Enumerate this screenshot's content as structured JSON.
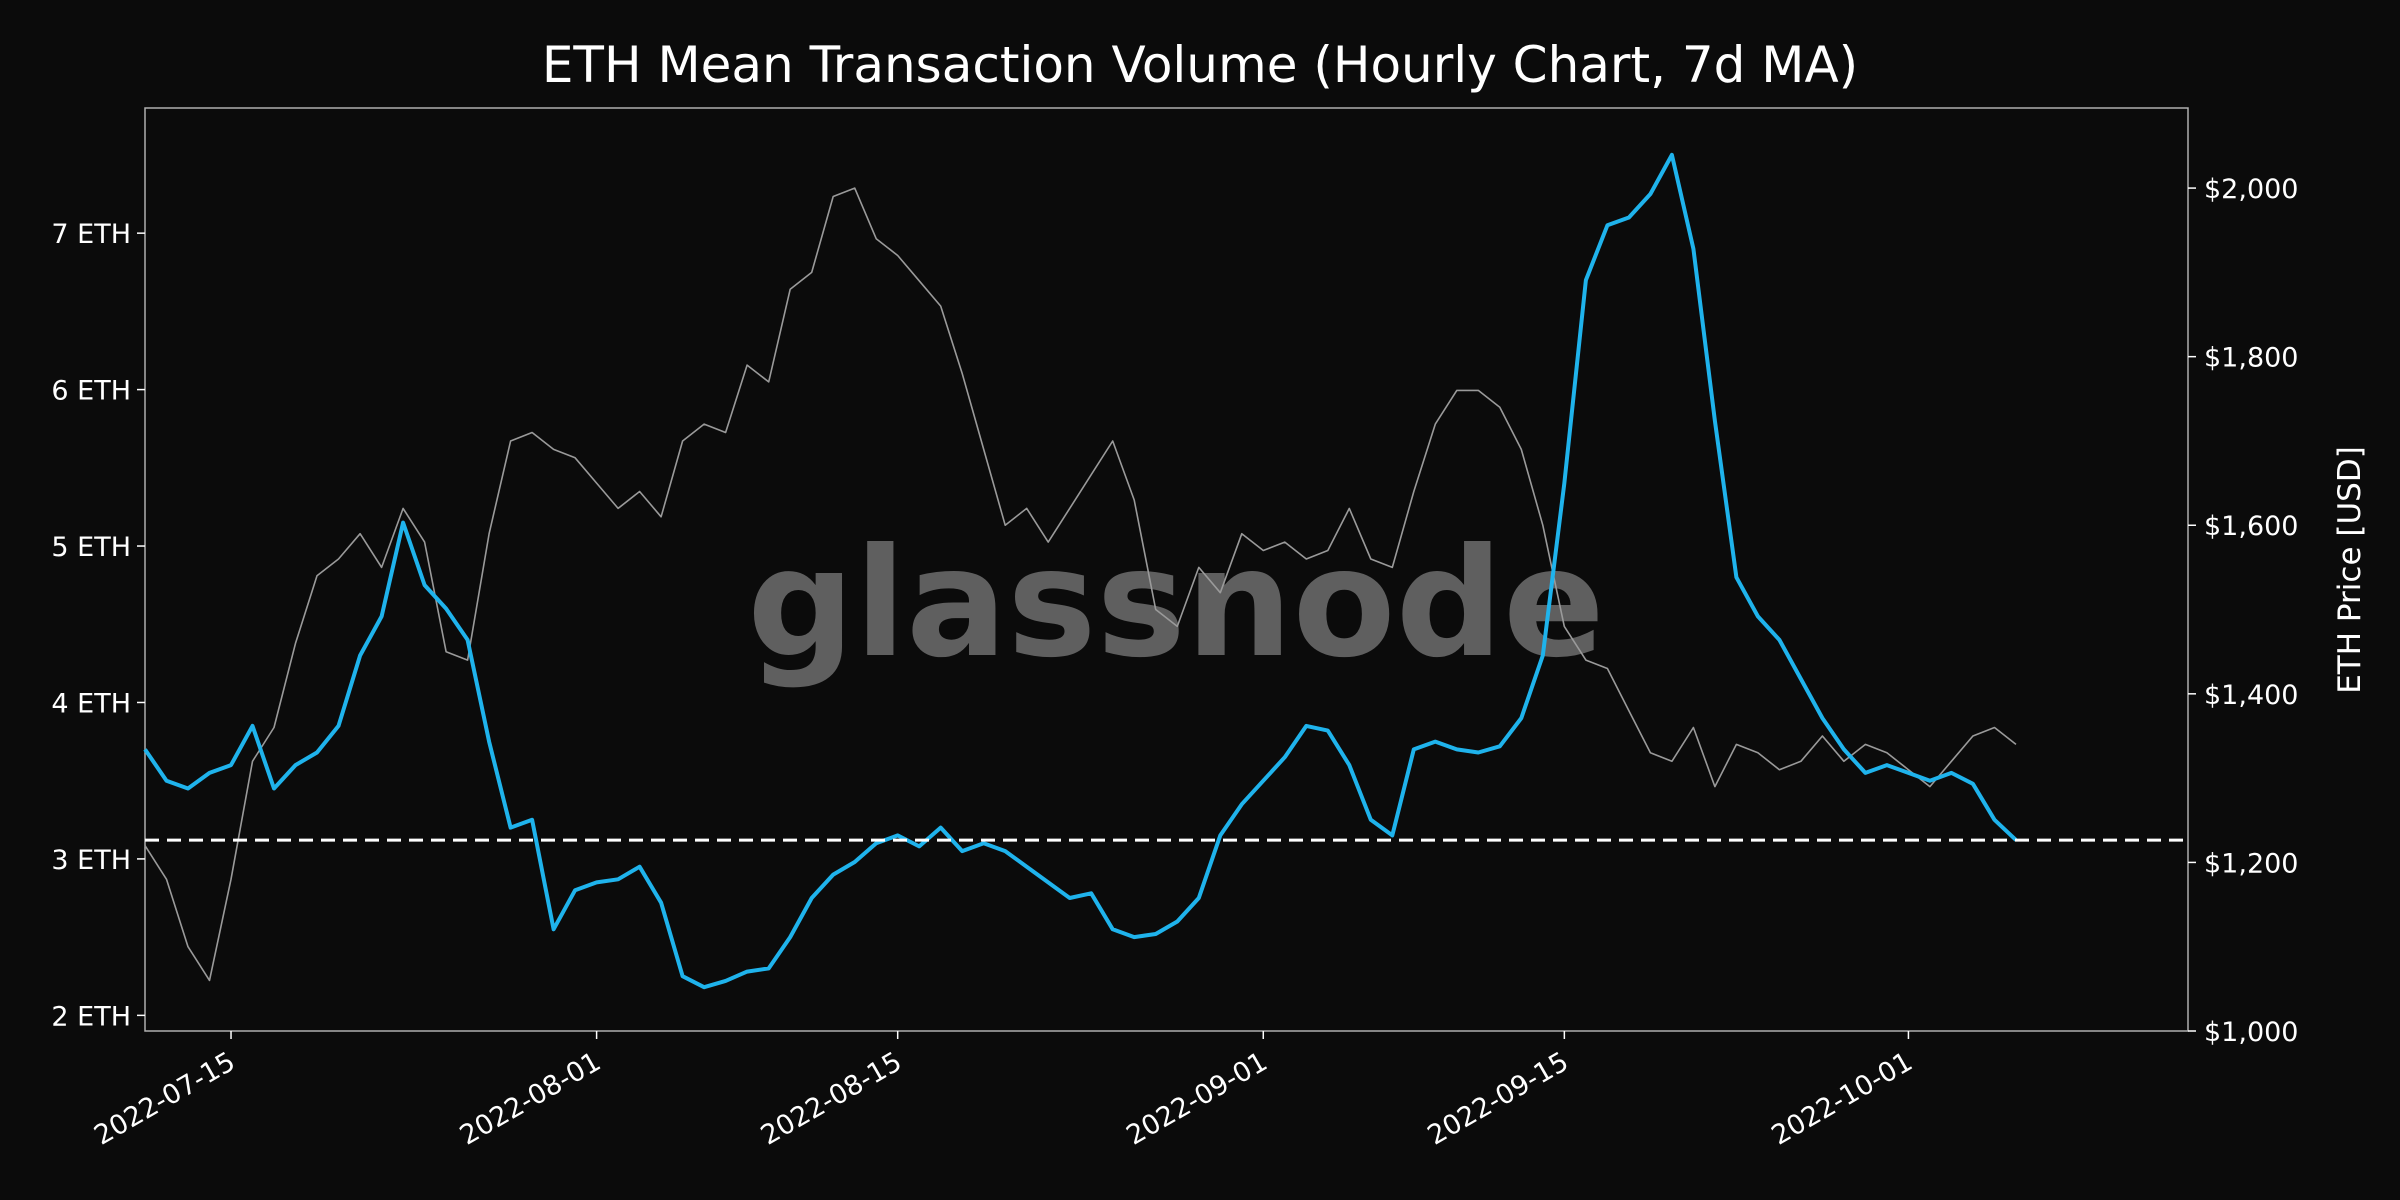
{
  "chart_data": {
    "type": "line",
    "title": "ETH Mean Transaction Volume (Hourly Chart, 7d MA)",
    "watermark": "glassnode",
    "xlabel": "",
    "ylabel_left": "",
    "ylabel_right": "ETH Price [USD]",
    "x_range": [
      "2022-07-11",
      "2022-10-14"
    ],
    "x_ticks": [
      "2022-07-15",
      "2022-08-01",
      "2022-08-15",
      "2022-09-01",
      "2022-09-15",
      "2022-10-01"
    ],
    "y_left": {
      "min": 1.9,
      "max": 7.8,
      "ticks": [
        2,
        3,
        4,
        5,
        6,
        7
      ],
      "tick_labels": [
        "2 ETH",
        "3 ETH",
        "4 ETH",
        "5 ETH",
        "6 ETH",
        "7 ETH"
      ]
    },
    "y_right": {
      "min": 1000,
      "max": 2095,
      "ticks": [
        1000,
        1200,
        1400,
        1600,
        1800,
        2000
      ],
      "tick_labels": [
        "$1,000",
        "$1,200",
        "$1,400",
        "$1,600",
        "$1,800",
        "$2,000"
      ]
    },
    "reference_line": {
      "axis": "left",
      "value": 3.12,
      "style": "dashed",
      "color": "#ffffff"
    },
    "series": [
      {
        "role": "mean_transaction_volume",
        "axis": "left",
        "color": "#1fb3ec",
        "x": [
          "2022-07-11",
          "2022-07-12",
          "2022-07-13",
          "2022-07-14",
          "2022-07-15",
          "2022-07-16",
          "2022-07-17",
          "2022-07-18",
          "2022-07-19",
          "2022-07-20",
          "2022-07-21",
          "2022-07-22",
          "2022-07-23",
          "2022-07-24",
          "2022-07-25",
          "2022-07-26",
          "2022-07-27",
          "2022-07-28",
          "2022-07-29",
          "2022-07-30",
          "2022-07-31",
          "2022-08-01",
          "2022-08-02",
          "2022-08-03",
          "2022-08-04",
          "2022-08-05",
          "2022-08-06",
          "2022-08-07",
          "2022-08-08",
          "2022-08-09",
          "2022-08-10",
          "2022-08-11",
          "2022-08-12",
          "2022-08-13",
          "2022-08-14",
          "2022-08-15",
          "2022-08-16",
          "2022-08-17",
          "2022-08-18",
          "2022-08-19",
          "2022-08-20",
          "2022-08-21",
          "2022-08-22",
          "2022-08-23",
          "2022-08-24",
          "2022-08-25",
          "2022-08-26",
          "2022-08-27",
          "2022-08-28",
          "2022-08-29",
          "2022-08-30",
          "2022-08-31",
          "2022-09-01",
          "2022-09-02",
          "2022-09-03",
          "2022-09-04",
          "2022-09-05",
          "2022-09-06",
          "2022-09-07",
          "2022-09-08",
          "2022-09-09",
          "2022-09-10",
          "2022-09-11",
          "2022-09-12",
          "2022-09-13",
          "2022-09-14",
          "2022-09-15",
          "2022-09-16",
          "2022-09-17",
          "2022-09-18",
          "2022-09-19",
          "2022-09-20",
          "2022-09-21",
          "2022-09-22",
          "2022-09-23",
          "2022-09-24",
          "2022-09-25",
          "2022-09-26",
          "2022-09-27",
          "2022-09-28",
          "2022-09-29",
          "2022-09-30",
          "2022-10-01",
          "2022-10-02",
          "2022-10-03",
          "2022-10-04",
          "2022-10-05",
          "2022-10-06"
        ],
        "values": [
          3.7,
          3.5,
          3.45,
          3.55,
          3.6,
          3.85,
          3.45,
          3.6,
          3.68,
          3.85,
          4.3,
          4.55,
          5.15,
          4.75,
          4.6,
          4.4,
          3.75,
          3.2,
          3.25,
          2.55,
          2.8,
          2.85,
          2.87,
          2.95,
          2.72,
          2.25,
          2.18,
          2.22,
          2.28,
          2.3,
          2.5,
          2.75,
          2.9,
          2.98,
          3.1,
          3.15,
          3.08,
          3.2,
          3.05,
          3.1,
          3.05,
          2.95,
          2.85,
          2.75,
          2.78,
          2.55,
          2.5,
          2.52,
          2.6,
          2.75,
          3.15,
          3.35,
          3.5,
          3.65,
          3.85,
          3.82,
          3.6,
          3.25,
          3.15,
          3.7,
          3.75,
          3.7,
          3.68,
          3.72,
          3.9,
          4.3,
          5.4,
          6.7,
          7.05,
          7.1,
          7.25,
          7.5,
          6.9,
          5.8,
          4.8,
          4.55,
          4.4,
          4.15,
          3.9,
          3.7,
          3.55,
          3.6,
          3.55,
          3.5,
          3.55,
          3.48,
          3.25,
          3.12
        ]
      },
      {
        "role": "eth_price",
        "axis": "right",
        "color": "#9a9a9a",
        "x": [
          "2022-07-11",
          "2022-07-12",
          "2022-07-13",
          "2022-07-14",
          "2022-07-15",
          "2022-07-16",
          "2022-07-17",
          "2022-07-18",
          "2022-07-19",
          "2022-07-20",
          "2022-07-21",
          "2022-07-22",
          "2022-07-23",
          "2022-07-24",
          "2022-07-25",
          "2022-07-26",
          "2022-07-27",
          "2022-07-28",
          "2022-07-29",
          "2022-07-30",
          "2022-07-31",
          "2022-08-01",
          "2022-08-02",
          "2022-08-03",
          "2022-08-04",
          "2022-08-05",
          "2022-08-06",
          "2022-08-07",
          "2022-08-08",
          "2022-08-09",
          "2022-08-10",
          "2022-08-11",
          "2022-08-12",
          "2022-08-13",
          "2022-08-14",
          "2022-08-15",
          "2022-08-16",
          "2022-08-17",
          "2022-08-18",
          "2022-08-19",
          "2022-08-20",
          "2022-08-21",
          "2022-08-22",
          "2022-08-23",
          "2022-08-24",
          "2022-08-25",
          "2022-08-26",
          "2022-08-27",
          "2022-08-28",
          "2022-08-29",
          "2022-08-30",
          "2022-08-31",
          "2022-09-01",
          "2022-09-02",
          "2022-09-03",
          "2022-09-04",
          "2022-09-05",
          "2022-09-06",
          "2022-09-07",
          "2022-09-08",
          "2022-09-09",
          "2022-09-10",
          "2022-09-11",
          "2022-09-12",
          "2022-09-13",
          "2022-09-14",
          "2022-09-15",
          "2022-09-16",
          "2022-09-17",
          "2022-09-18",
          "2022-09-19",
          "2022-09-20",
          "2022-09-21",
          "2022-09-22",
          "2022-09-23",
          "2022-09-24",
          "2022-09-25",
          "2022-09-26",
          "2022-09-27",
          "2022-09-28",
          "2022-09-29",
          "2022-09-30",
          "2022-10-01",
          "2022-10-02",
          "2022-10-03",
          "2022-10-04",
          "2022-10-05",
          "2022-10-06"
        ],
        "values": [
          1220,
          1180,
          1100,
          1060,
          1180,
          1320,
          1360,
          1460,
          1540,
          1560,
          1590,
          1550,
          1620,
          1580,
          1450,
          1440,
          1590,
          1700,
          1710,
          1690,
          1680,
          1650,
          1620,
          1640,
          1610,
          1700,
          1720,
          1710,
          1790,
          1770,
          1880,
          1900,
          1990,
          2000,
          1940,
          1920,
          1890,
          1860,
          1780,
          1690,
          1600,
          1620,
          1580,
          1620,
          1660,
          1700,
          1630,
          1500,
          1480,
          1550,
          1520,
          1590,
          1570,
          1580,
          1560,
          1570,
          1620,
          1560,
          1550,
          1640,
          1720,
          1760,
          1760,
          1740,
          1690,
          1600,
          1480,
          1440,
          1430,
          1380,
          1330,
          1320,
          1360,
          1290,
          1340,
          1330,
          1310,
          1320,
          1350,
          1320,
          1340,
          1330,
          1310,
          1290,
          1320,
          1350,
          1360,
          1340
        ]
      }
    ]
  }
}
